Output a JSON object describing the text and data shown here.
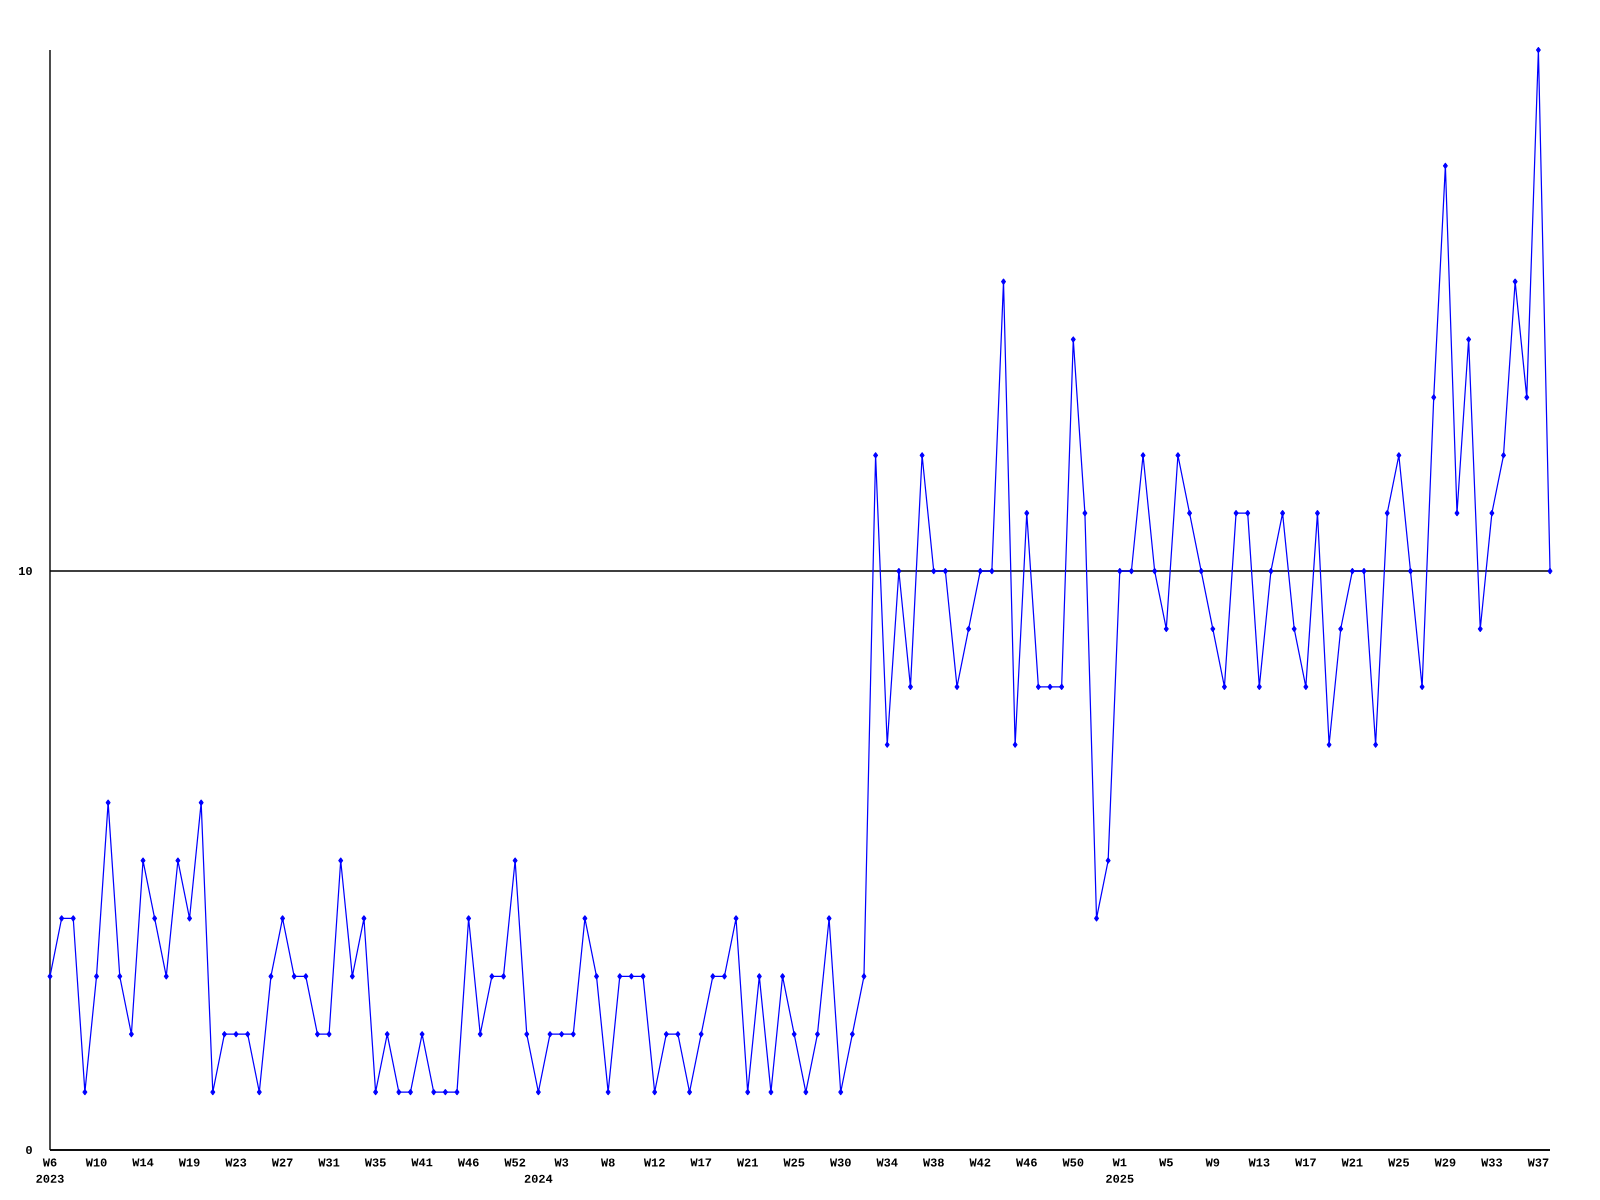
{
  "chart_data": {
    "type": "line",
    "categories": [
      "W6",
      null,
      null,
      null,
      "W10",
      null,
      null,
      null,
      "W14",
      null,
      null,
      null,
      "W19",
      null,
      null,
      null,
      "W23",
      null,
      null,
      null,
      "W27",
      null,
      null,
      null,
      "W31",
      null,
      null,
      null,
      "W35",
      null,
      null,
      null,
      "W41",
      null,
      null,
      null,
      "W46",
      null,
      null,
      null,
      "W52",
      null,
      null,
      null,
      "W3",
      null,
      null,
      null,
      "W8",
      null,
      null,
      null,
      "W12",
      null,
      null,
      null,
      "W17",
      null,
      null,
      null,
      "W21",
      null,
      null,
      null,
      "W25",
      null,
      null,
      null,
      "W30",
      null,
      null,
      null,
      "W34",
      null,
      null,
      null,
      "W38",
      null,
      null,
      null,
      "W42",
      null,
      null,
      null,
      "W46",
      null,
      null,
      null,
      "W50",
      null,
      null,
      null,
      "W1",
      null,
      null,
      null,
      "W5",
      null,
      null,
      null,
      "W9",
      null,
      null,
      null,
      "W13",
      null,
      null,
      null,
      "W17",
      null,
      null,
      null,
      "W21",
      null,
      null,
      null,
      "W25",
      null,
      null,
      null,
      "W29",
      null,
      null,
      null,
      "W33",
      null,
      null,
      null,
      "W37",
      null
    ],
    "values": [
      3,
      4,
      4,
      1,
      3,
      6,
      3,
      2,
      5,
      4,
      3,
      5,
      4,
      6,
      1,
      2,
      2,
      2,
      1,
      3,
      4,
      3,
      3,
      2,
      2,
      5,
      3,
      4,
      1,
      2,
      1,
      1,
      2,
      1,
      1,
      1,
      4,
      2,
      3,
      3,
      5,
      2,
      1,
      2,
      2,
      2,
      4,
      3,
      1,
      3,
      3,
      3,
      1,
      2,
      2,
      1,
      2,
      3,
      3,
      4,
      1,
      3,
      1,
      3,
      2,
      1,
      2,
      4,
      1,
      2,
      3,
      12,
      7,
      10,
      8,
      12,
      10,
      10,
      8,
      9,
      10,
      10,
      15,
      7,
      11,
      8,
      8,
      8,
      14,
      11,
      4,
      5,
      10,
      10,
      12,
      10,
      9,
      12,
      11,
      10,
      9,
      8,
      11,
      11,
      8,
      10,
      11,
      9,
      8,
      11,
      7,
      9,
      10,
      10,
      7,
      11,
      12,
      10,
      8,
      13,
      17,
      11,
      14,
      9,
      11,
      12,
      15,
      13,
      19,
      10
    ],
    "color": "#0000ff",
    "marker": "diamond",
    "line_style": "solid",
    "ylim": [
      0,
      19
    ],
    "yticks": [
      0,
      10
    ],
    "grid": "y",
    "annotations": [
      "2023",
      "2024",
      "2025"
    ]
  }
}
